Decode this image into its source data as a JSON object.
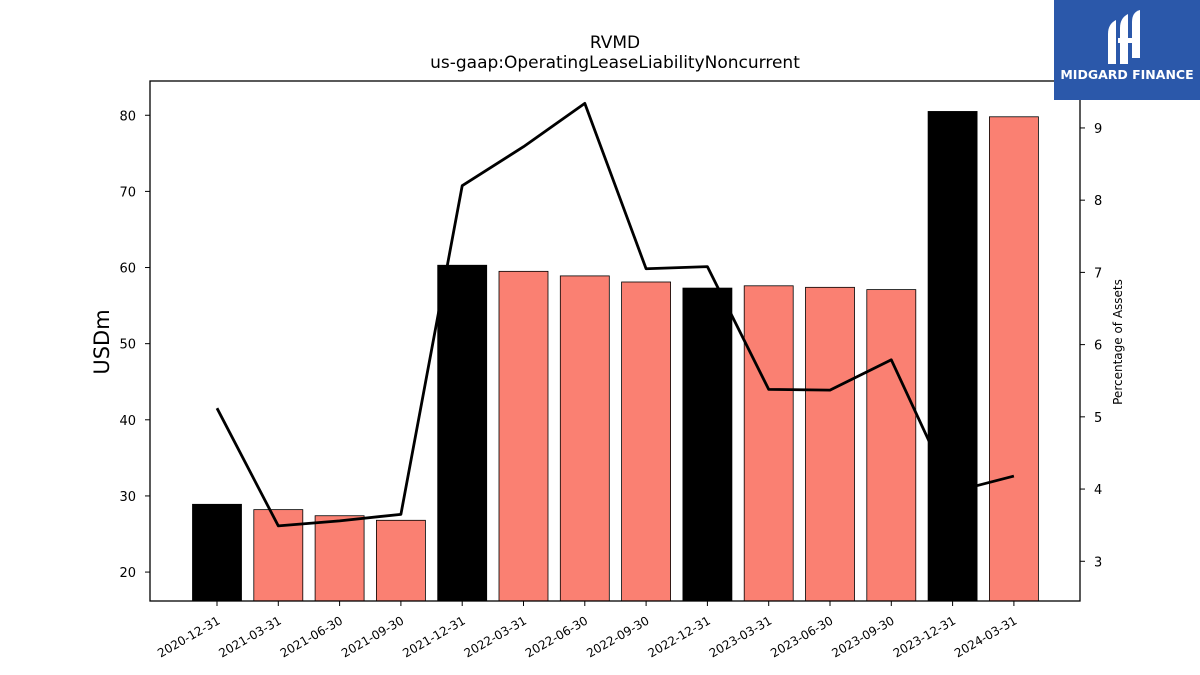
{
  "chart_data": {
    "type": "bar",
    "title": "RVMD",
    "subtitle": "us-gaap:OperatingLeaseLiabilityNoncurrent",
    "ylabel": "USDm",
    "y2label": "Percentage of Assets",
    "categories": [
      "2020-12-31",
      "2021-03-31",
      "2021-06-30",
      "2021-09-30",
      "2021-12-31",
      "2022-03-31",
      "2022-06-30",
      "2022-09-30",
      "2022-12-31",
      "2023-03-31",
      "2023-06-30",
      "2023-09-30",
      "2023-12-31",
      "2024-03-31"
    ],
    "series": [
      {
        "values": [
          28.9,
          28.2,
          27.4,
          26.8,
          60.3,
          59.5,
          58.9,
          58.1,
          57.3,
          57.6,
          57.4,
          57.1,
          80.5,
          79.8
        ],
        "bar_colors": [
          "#000000",
          "#fa8072",
          "#fa8072",
          "#fa8072",
          "#000000",
          "#fa8072",
          "#fa8072",
          "#fa8072",
          "#000000",
          "#fa8072",
          "#fa8072",
          "#fa8072",
          "#000000",
          "#fa8072"
        ]
      },
      {
        "axis": "right",
        "type": "line",
        "color": "#000000",
        "values": [
          5.12,
          3.49,
          3.56,
          3.65,
          8.2,
          8.74,
          9.34,
          7.05,
          7.08,
          5.38,
          5.37,
          5.79,
          3.96,
          4.18
        ]
      }
    ],
    "ylim": [
      16.2,
      84.5
    ],
    "y2lim": [
      2.45,
      9.65
    ],
    "yticks": [
      "20",
      "30",
      "40",
      "50",
      "60",
      "70",
      "80"
    ],
    "y2ticks": [
      "3",
      "4",
      "5",
      "6",
      "7",
      "8",
      "9"
    ],
    "grid": false
  },
  "logo": {
    "text": "MIDGARD FINANCE",
    "color": "#2b58aa"
  }
}
